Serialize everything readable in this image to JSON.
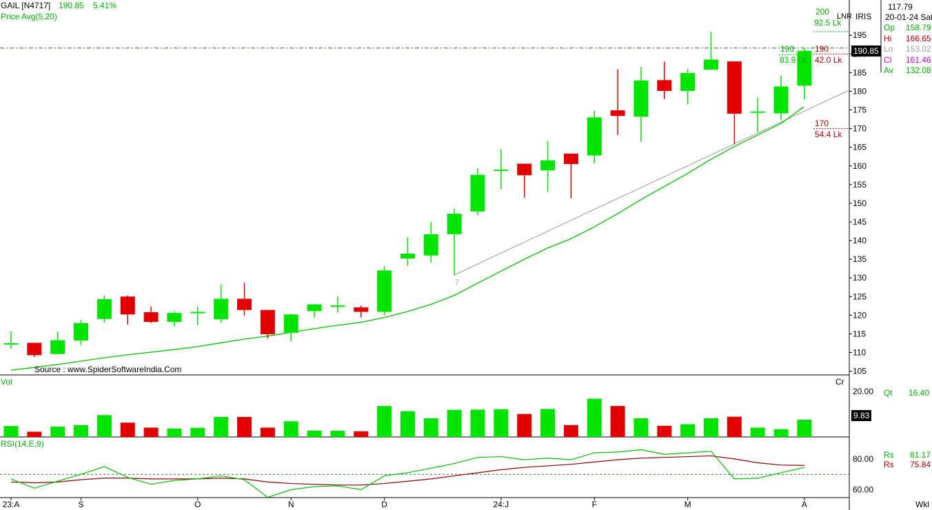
{
  "header": {
    "symbol": "GAIL [N4717]",
    "price": "190.85",
    "change": "5.41%",
    "indicator": "Price  Avg(5,20)"
  },
  "source": "Source : www.SpiderSoftwareIndia.Com",
  "info_panel": {
    "top_value": "117.79",
    "date": "20-01-24 Sat",
    "iris": "IRIS",
    "lnr": "LNR",
    "rows": [
      {
        "label": "Op",
        "value": "158.79",
        "color": "#00b000"
      },
      {
        "label": "Hi",
        "value": "166.65",
        "color": "#b00000"
      },
      {
        "label": "Lo",
        "value": "153.02",
        "color": "#a0a0a0"
      },
      {
        "label": "Cl",
        "value": "161.46",
        "color": "#cc00cc"
      },
      {
        "label": "Av",
        "value": "132.08",
        "color": "#00b000"
      }
    ]
  },
  "last_price_tag": "190.85",
  "annotations": {
    "level_200": "200",
    "level_200_vol": "92.5 Lk",
    "level_190_left": "190",
    "level_190_left_vol": "83.9 Lk",
    "level_190_right": "190",
    "level_190_right_vol": "42.0 Lk",
    "level_170": "170",
    "level_170_vol": "54.4 Lk",
    "trend_start_label": "7"
  },
  "volume_panel": {
    "label": "Vol",
    "unit": "Cr",
    "qt_label": "Qt",
    "qt_value": "16.40",
    "current_tag": "9.83"
  },
  "rsi_panel": {
    "label": "RSI(14,E,9)",
    "rows": [
      {
        "label": "Rs",
        "value": "81.17",
        "color": "#00b000"
      },
      {
        "label": "Rs",
        "value": "75.84",
        "color": "#b00000"
      }
    ]
  },
  "x_axis": {
    "labels": [
      {
        "text": "23:A",
        "index": 0
      },
      {
        "text": "S",
        "index": 3
      },
      {
        "text": "O",
        "index": 8
      },
      {
        "text": "N",
        "index": 12
      },
      {
        "text": "D",
        "index": 16
      },
      {
        "text": "24:J",
        "index": 21
      },
      {
        "text": "F",
        "index": 25
      },
      {
        "text": "M",
        "index": 29
      },
      {
        "text": "A",
        "index": 34
      }
    ],
    "timeframe": "Wkl"
  },
  "chart_data": {
    "type": "candlestick",
    "price_axis": {
      "min": 104,
      "max": 200,
      "ticks": [
        105,
        110,
        115,
        120,
        125,
        130,
        135,
        140,
        145,
        150,
        155,
        160,
        165,
        170,
        175,
        180,
        185,
        190,
        195
      ]
    },
    "candles": [
      {
        "o": 112.5,
        "h": 115.6,
        "l": 111.0,
        "c": 112.5
      },
      {
        "o": 112.6,
        "h": 112.6,
        "l": 108.8,
        "c": 109.3
      },
      {
        "o": 109.6,
        "h": 115.6,
        "l": 109.6,
        "c": 113.3
      },
      {
        "o": 113.2,
        "h": 118.8,
        "l": 112.0,
        "c": 117.9
      },
      {
        "o": 119.0,
        "h": 125.3,
        "l": 118.0,
        "c": 124.3
      },
      {
        "o": 125.0,
        "h": 125.3,
        "l": 117.5,
        "c": 120.2
      },
      {
        "o": 120.8,
        "h": 122.3,
        "l": 117.9,
        "c": 118.2
      },
      {
        "o": 118.2,
        "h": 121.1,
        "l": 117.0,
        "c": 120.6
      },
      {
        "o": 120.6,
        "h": 122.3,
        "l": 117.3,
        "c": 120.9
      },
      {
        "o": 118.9,
        "h": 128.2,
        "l": 117.9,
        "c": 124.4
      },
      {
        "o": 124.4,
        "h": 128.7,
        "l": 119.9,
        "c": 121.4
      },
      {
        "o": 121.4,
        "h": 121.4,
        "l": 113.8,
        "c": 114.9
      },
      {
        "o": 115.3,
        "h": 120.4,
        "l": 113.0,
        "c": 120.2
      },
      {
        "o": 121.1,
        "h": 123.0,
        "l": 119.4,
        "c": 122.9
      },
      {
        "o": 122.6,
        "h": 125.0,
        "l": 120.7,
        "c": 122.6
      },
      {
        "o": 122.1,
        "h": 122.6,
        "l": 119.4,
        "c": 120.9
      },
      {
        "o": 120.9,
        "h": 133.1,
        "l": 120.0,
        "c": 132.0
      },
      {
        "o": 135.2,
        "h": 140.9,
        "l": 133.2,
        "c": 136.5
      },
      {
        "o": 136.0,
        "h": 144.9,
        "l": 134.1,
        "c": 141.7
      },
      {
        "o": 141.7,
        "h": 148.5,
        "l": 130.8,
        "c": 147.2
      },
      {
        "o": 147.8,
        "h": 159.4,
        "l": 146.8,
        "c": 157.6
      },
      {
        "o": 159.0,
        "h": 164.5,
        "l": 153.8,
        "c": 159.0
      },
      {
        "o": 160.6,
        "h": 160.6,
        "l": 151.5,
        "c": 157.5
      },
      {
        "o": 158.8,
        "h": 166.6,
        "l": 153.0,
        "c": 161.5
      },
      {
        "o": 163.3,
        "h": 163.3,
        "l": 151.3,
        "c": 160.5
      },
      {
        "o": 162.8,
        "h": 174.8,
        "l": 160.7,
        "c": 173.0
      },
      {
        "o": 174.9,
        "h": 185.9,
        "l": 168.3,
        "c": 173.4
      },
      {
        "o": 173.2,
        "h": 186.5,
        "l": 166.5,
        "c": 182.9
      },
      {
        "o": 183.0,
        "h": 187.9,
        "l": 177.9,
        "c": 180.1
      },
      {
        "o": 180.1,
        "h": 186.0,
        "l": 176.5,
        "c": 184.9
      },
      {
        "o": 185.8,
        "h": 195.9,
        "l": 185.8,
        "c": 188.5
      },
      {
        "o": 188.0,
        "h": 188.0,
        "l": 165.9,
        "c": 174.0
      },
      {
        "o": 174.6,
        "h": 178.3,
        "l": 169.0,
        "c": 174.6
      },
      {
        "o": 174.1,
        "h": 184.2,
        "l": 172.3,
        "c": 181.3
      },
      {
        "o": 181.5,
        "h": 191.6,
        "l": 177.8,
        "c": 190.85
      }
    ],
    "moving_average": [
      105.3,
      106.0,
      106.8,
      107.7,
      108.6,
      109.4,
      110.1,
      110.8,
      111.6,
      112.6,
      113.6,
      114.4,
      115.4,
      116.4,
      117.3,
      118.1,
      119.4,
      121.0,
      122.9,
      125.3,
      128.6,
      131.8,
      135.0,
      138.0,
      140.5,
      143.7,
      147.2,
      151.0,
      154.5,
      158.0,
      161.8,
      165.2,
      168.3,
      171.4,
      175.8
    ],
    "trendline": {
      "from": {
        "index": 19,
        "value": 130.8
      },
      "to_value_at_right_edge": 180.3
    },
    "horizontal_levels": [
      191.5
    ],
    "volume": {
      "values": [
        4.8,
        2.3,
        4.5,
        5.2,
        9.6,
        6.3,
        4.1,
        3.7,
        4.0,
        8.8,
        8.8,
        4.1,
        6.9,
        2.8,
        2.7,
        2.5,
        13.6,
        11.3,
        8.2,
        11.9,
        12.0,
        12.2,
        10.1,
        12.3,
        5.2,
        16.8,
        13.6,
        8.2,
        4.9,
        5.6,
        8.2,
        8.9,
        4.1,
        3.4,
        7.6
      ],
      "range": [
        0,
        20
      ],
      "ticks": [
        20.0
      ]
    },
    "rsi": {
      "rsi_line": [
        67.0,
        61.0,
        65.5,
        70.0,
        75.0,
        68.0,
        63.5,
        66.0,
        67.0,
        69.0,
        66.5,
        55.0,
        60.0,
        62.0,
        62.5,
        60.0,
        69.0,
        71.0,
        74.0,
        77.0,
        81.0,
        81.5,
        79.5,
        80.5,
        79.5,
        84.0,
        84.5,
        86.0,
        83.0,
        84.0,
        85.0,
        67.0,
        67.5,
        71.0,
        74.5
      ],
      "signal_line": [
        65.0,
        64.5,
        65.0,
        66.5,
        67.5,
        67.5,
        67.0,
        67.0,
        67.0,
        67.5,
        67.0,
        65.0,
        64.0,
        63.5,
        63.0,
        63.0,
        64.0,
        65.5,
        67.0,
        69.0,
        71.0,
        73.0,
        74.5,
        75.5,
        76.5,
        78.0,
        79.5,
        80.5,
        81.0,
        81.5,
        82.0,
        80.0,
        77.5,
        76.0,
        75.8
      ],
      "range": [
        54,
        92
      ],
      "ticks": [
        60.0,
        80.0
      ],
      "reference_level": 70
    }
  }
}
